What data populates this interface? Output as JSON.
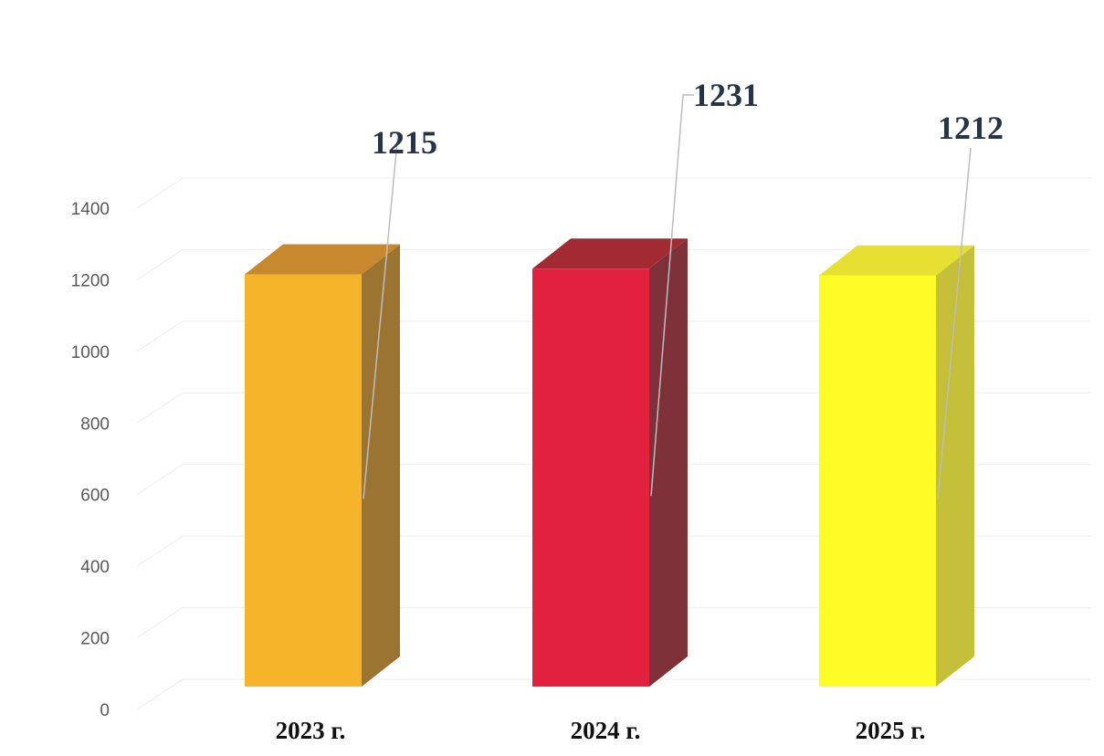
{
  "chart_data": {
    "type": "bar",
    "style": "3d-column",
    "categories": [
      "2023 г.",
      "2024 г.",
      "2025 г."
    ],
    "values": [
      1215,
      1231,
      1212
    ],
    "data_labels": [
      "1215",
      "1231",
      "1212"
    ],
    "ylim": [
      0,
      1400
    ],
    "yticks": [
      "0",
      "200",
      "400",
      "600",
      "800",
      "1000",
      "1200",
      "1400"
    ],
    "grid": true,
    "legend": "none",
    "title": "",
    "xlabel": "",
    "ylabel": "",
    "colors": {
      "bars": [
        {
          "front": "#f5b42a",
          "side": "#9c7432",
          "top": "#c8892e"
        },
        {
          "front": "#e2213f",
          "side": "#7e3138",
          "top": "#a12a33"
        },
        {
          "front": "#fffb24",
          "side": "#c4c03a",
          "top": "#e6e032"
        }
      ],
      "tick_text": "#595959",
      "category_text": "#111111",
      "data_label_text": "#263444",
      "grid": "#eeeeee",
      "leader": "#bdbdbd"
    }
  }
}
